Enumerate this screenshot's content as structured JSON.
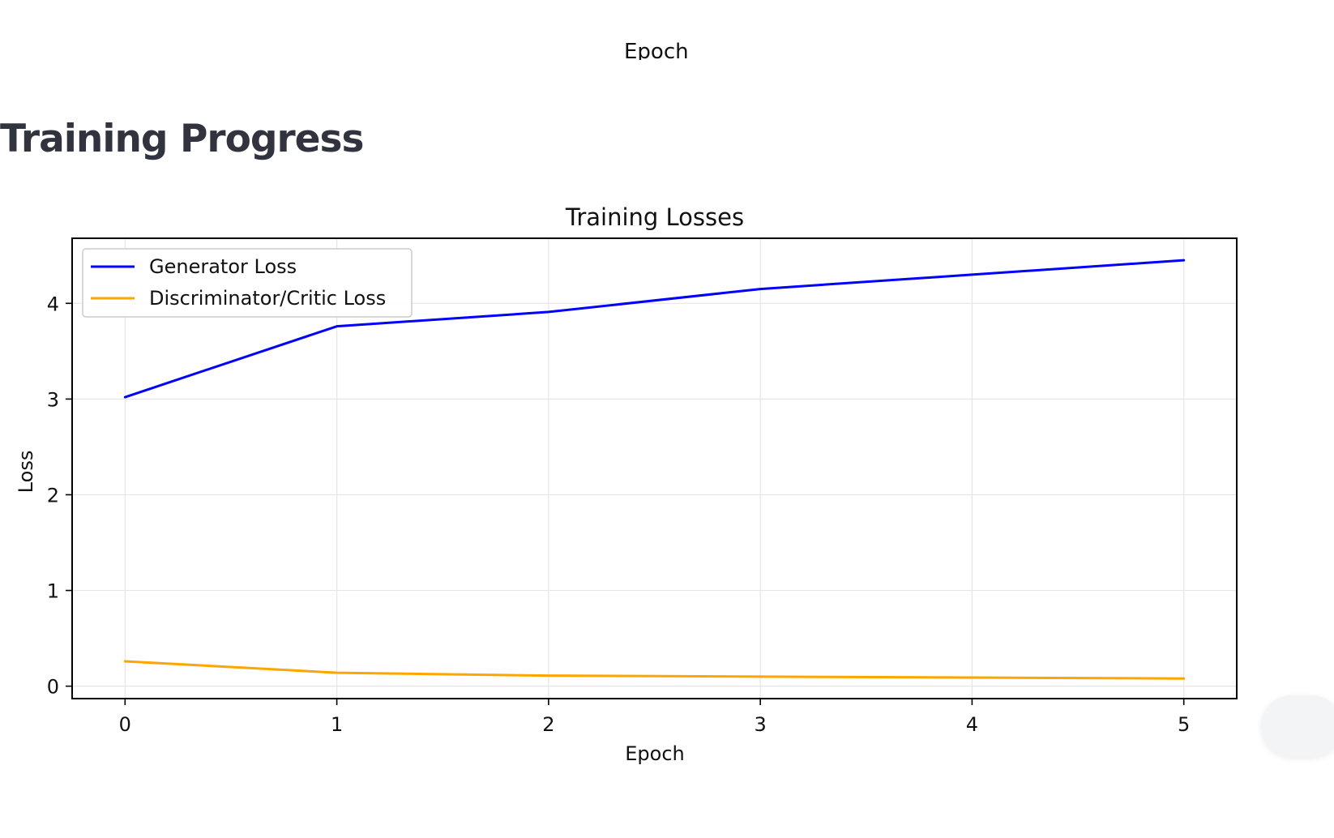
{
  "previous_chart": {
    "xlabel_cut": "Epoch"
  },
  "page_title": "Training Progress",
  "chart_data": {
    "type": "line",
    "title": "Training Losses",
    "xlabel": "Epoch",
    "ylabel": "Loss",
    "x": [
      0,
      1,
      2,
      3,
      4,
      5
    ],
    "xticks": [
      "0",
      "1",
      "2",
      "3",
      "4",
      "5"
    ],
    "yticks": [
      "0",
      "1",
      "2",
      "3",
      "4"
    ],
    "xlim": [
      -0.25,
      5.25
    ],
    "ylim": [
      -0.13,
      4.68
    ],
    "grid": true,
    "legend_position": "top-left",
    "series": [
      {
        "name": "Generator Loss",
        "color": "#0000ff",
        "values": [
          3.02,
          3.76,
          3.91,
          4.15,
          4.3,
          4.45
        ]
      },
      {
        "name": "Discriminator/Critic Loss",
        "color": "#ffa500",
        "values": [
          0.26,
          0.14,
          0.11,
          0.1,
          0.09,
          0.08
        ]
      }
    ]
  },
  "colors": {
    "title_text": "#31333f",
    "axis": "#000000",
    "grid": "#e6e6e6"
  }
}
